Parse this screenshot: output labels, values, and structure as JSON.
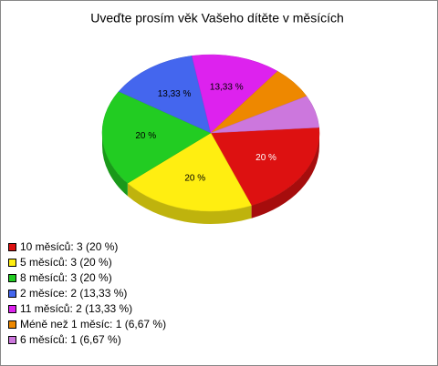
{
  "chart_data": {
    "type": "pie",
    "title": "Uveďte prosím věk Vašeho dítěte v měsících",
    "categories": [
      "10 měsíců: 3 (20 %)",
      "5 měsíců: 3 (20 %)",
      "8 měsíců: 3 (20 %)",
      "2 měsíce: 2 (13,33 %)",
      "11 měsíců: 2 (13,33 %)",
      "Méně než 1 měsíc: 1 (6,67 %)",
      "6 měsíců: 1 (6,67 %)"
    ],
    "values": [
      20,
      20,
      20,
      13.33,
      13.33,
      6.67,
      6.67
    ],
    "value_labels": [
      "20 %",
      "20 %",
      "20 %",
      "13,33 %",
      "13,33 %",
      null,
      null
    ],
    "colors": [
      "#dd1111",
      "#ffee11",
      "#22cc22",
      "#4466ee",
      "#dd22ee",
      "#ee8800",
      "#cc77dd"
    ],
    "legend": "bottom-left"
  }
}
